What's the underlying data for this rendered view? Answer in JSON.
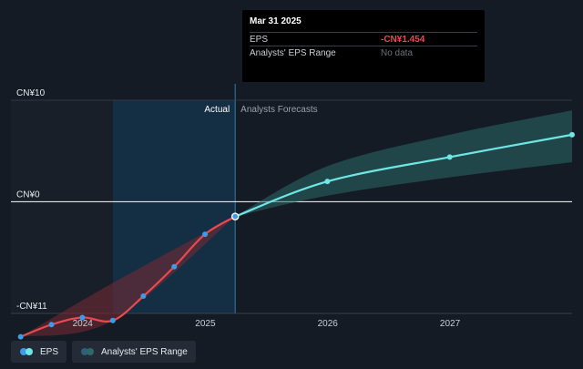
{
  "tooltip": {
    "date": "Mar 31 2025",
    "rows": [
      {
        "label": "EPS",
        "value": "-CN¥1.454"
      },
      {
        "label": "Analysts' EPS Range",
        "value": "No data"
      }
    ]
  },
  "legend": {
    "eps_label": "EPS",
    "range_label": "Analysts' EPS Range"
  },
  "colors": {
    "background": "#151b25",
    "actual_band": "#14364e",
    "eps_actual": "#e84b4f",
    "eps_forecast": "#6ee6e6",
    "range_actual": "#7a2a33",
    "range_forecast": "#2c6a68",
    "point": "#3d9be9",
    "zero_line": "#ffffff"
  },
  "chart_data": {
    "type": "line",
    "y_unit": "CN¥",
    "ylim": [
      -11,
      10
    ],
    "xlim": [
      "2023-06-01",
      "2027-12-31"
    ],
    "y_tick_labels": [
      {
        "value": 10,
        "label": "CN¥10"
      },
      {
        "value": 0,
        "label": "CN¥0"
      },
      {
        "value": -11,
        "label": "-CN¥11"
      }
    ],
    "x_ticks": [
      {
        "date": "2024-01-01",
        "label": "2024"
      },
      {
        "date": "2025-01-01",
        "label": "2025"
      },
      {
        "date": "2026-01-01",
        "label": "2026"
      },
      {
        "date": "2027-01-01",
        "label": "2027"
      }
    ],
    "sections": {
      "actual": "Actual",
      "forecast": "Analysts Forecasts"
    },
    "actual_start": "2024-03-31",
    "divider": "2025-03-31",
    "series": [
      {
        "name": "EPS",
        "kind": "actual",
        "points": [
          {
            "date": "2023-06-30",
            "value": -13.3
          },
          {
            "date": "2023-09-30",
            "value": -12.1
          },
          {
            "date": "2023-12-31",
            "value": -11.4
          },
          {
            "date": "2024-03-31",
            "value": -11.7
          },
          {
            "date": "2024-06-30",
            "value": -9.3
          },
          {
            "date": "2024-09-30",
            "value": -6.4
          },
          {
            "date": "2024-12-31",
            "value": -3.2
          },
          {
            "date": "2025-03-31",
            "value": -1.454
          }
        ]
      },
      {
        "name": "EPS",
        "kind": "forecast",
        "points": [
          {
            "date": "2025-03-31",
            "value": -1.454
          },
          {
            "date": "2025-12-31",
            "value": 2.0
          },
          {
            "date": "2026-12-31",
            "value": 4.4
          },
          {
            "date": "2027-12-31",
            "value": 6.6
          }
        ]
      }
    ],
    "range": {
      "name": "Analysts' EPS Range",
      "actual": [
        {
          "date": "2023-06-30",
          "low": -13.3,
          "high": -13.3
        },
        {
          "date": "2024-03-31",
          "low": -11.7,
          "high": -8.0
        },
        {
          "date": "2025-03-31",
          "low": -1.454,
          "high": -1.454
        }
      ],
      "forecast": [
        {
          "date": "2025-03-31",
          "low": -1.454,
          "high": -1.454
        },
        {
          "date": "2025-12-31",
          "low": 0.6,
          "high": 3.5
        },
        {
          "date": "2026-12-31",
          "low": 2.4,
          "high": 6.6
        },
        {
          "date": "2027-12-31",
          "low": 3.9,
          "high": 9.0
        }
      ]
    }
  }
}
